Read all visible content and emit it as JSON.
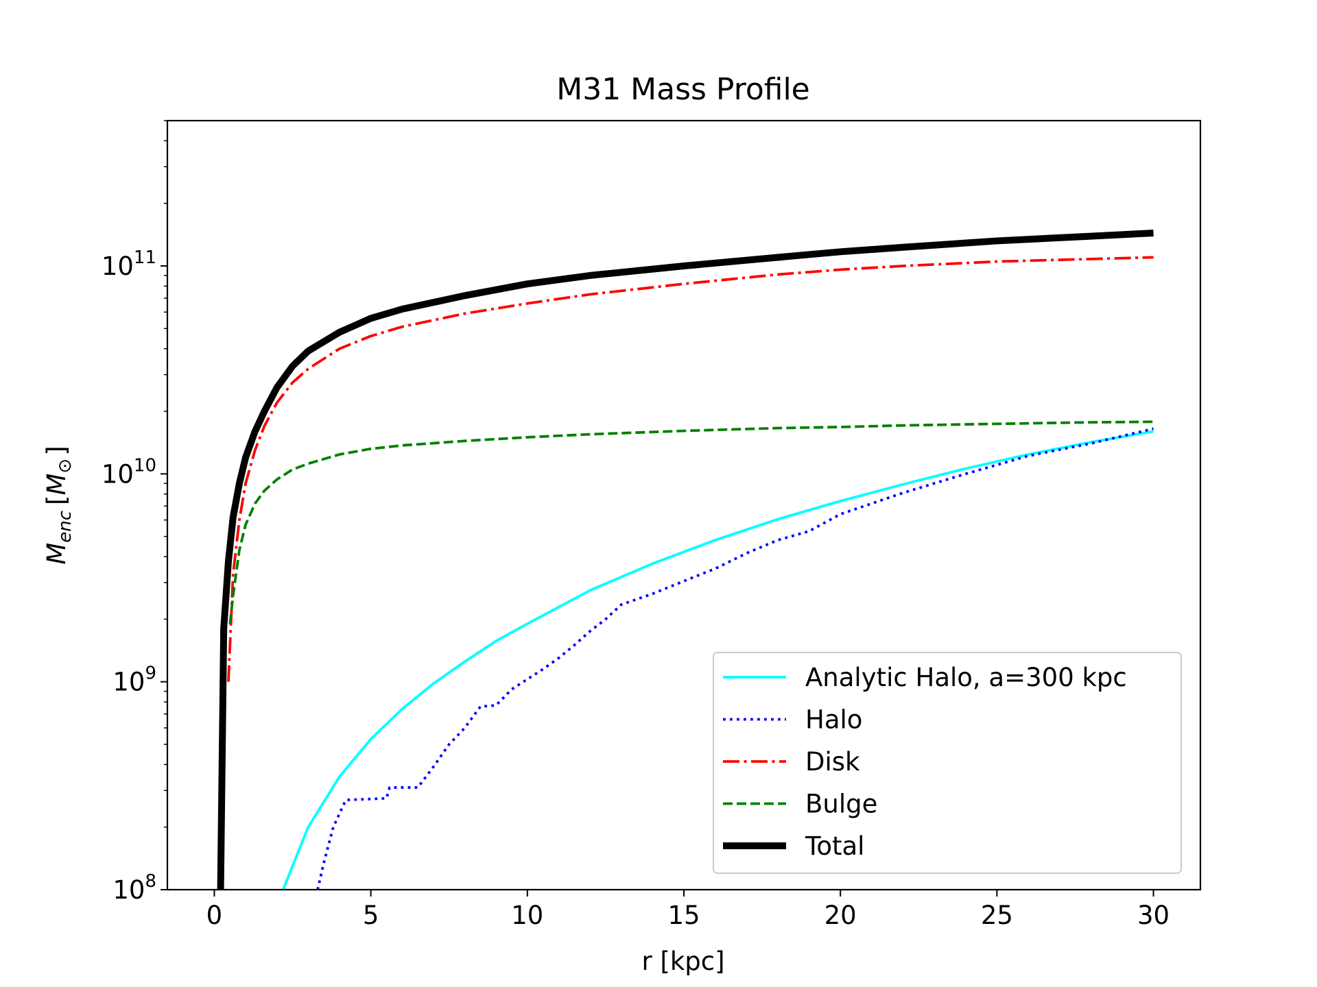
{
  "chart_data": {
    "type": "line",
    "title": "M31 Mass Profile",
    "xlabel": "r [kpc]",
    "ylabel": {
      "base": "M",
      "sub": "enc",
      "unit_open": "[",
      "unit_base": "M",
      "unit_sub": "⊙",
      "unit_close": "]"
    },
    "xlim": [
      -1.5,
      31.5
    ],
    "ylim": [
      100000000.0,
      500000000000.0
    ],
    "yscale": "log",
    "xticks": [
      0,
      5,
      10,
      15,
      20,
      25,
      30
    ],
    "xtick_labels": [
      "0",
      "5",
      "10",
      "15",
      "20",
      "25",
      "30"
    ],
    "yticks": [
      {
        "value": 100000000.0,
        "base": "10",
        "exp": "8"
      },
      {
        "value": 1000000000.0,
        "base": "10",
        "exp": "9"
      },
      {
        "value": 10000000000.0,
        "base": "10",
        "exp": "10"
      },
      {
        "value": 100000000000.0,
        "base": "10",
        "exp": "11"
      }
    ],
    "grid": false,
    "legend_position": "lower-right",
    "series": [
      {
        "name": "Analytic Halo, a=300 kpc",
        "color": "#00ffff",
        "style": "solid",
        "points": [
          [
            2.2,
            100000000.0
          ],
          [
            2.5,
            130000000.0
          ],
          [
            3,
            200000000.0
          ],
          [
            4,
            350000000.0
          ],
          [
            5,
            530000000.0
          ],
          [
            6,
            740000000.0
          ],
          [
            7,
            980000000.0
          ],
          [
            8,
            1250000000.0
          ],
          [
            9,
            1570000000.0
          ],
          [
            10,
            1900000000.0
          ],
          [
            12,
            2750000000.0
          ],
          [
            14,
            3700000000.0
          ],
          [
            16,
            4800000000.0
          ],
          [
            18,
            6050000000.0
          ],
          [
            20,
            7400000000.0
          ],
          [
            22,
            8900000000.0
          ],
          [
            24,
            10600000000.0
          ],
          [
            26,
            12400000000.0
          ],
          [
            28,
            14200000000.0
          ],
          [
            30,
            16000000000.0
          ]
        ]
      },
      {
        "name": "Halo",
        "color": "#0000ff",
        "style": "dotted",
        "points": [
          [
            3.3,
            100000000.0
          ],
          [
            3.5,
            135000000.0
          ],
          [
            3.8,
            200000000.0
          ],
          [
            4.2,
            270000000.0
          ],
          [
            5.5,
            275000000.0
          ],
          [
            5.6,
            310000000.0
          ],
          [
            6.5,
            310000000.0
          ],
          [
            7,
            390000000.0
          ],
          [
            7.5,
            500000000.0
          ],
          [
            8,
            600000000.0
          ],
          [
            8.5,
            760000000.0
          ],
          [
            9,
            770000000.0
          ],
          [
            9.5,
            920000000.0
          ],
          [
            10.5,
            1150000000.0
          ],
          [
            11,
            1300000000.0
          ],
          [
            11.5,
            1500000000.0
          ],
          [
            12,
            1750000000.0
          ],
          [
            12.5,
            2000000000.0
          ],
          [
            13,
            2350000000.0
          ],
          [
            14,
            2650000000.0
          ],
          [
            15,
            3050000000.0
          ],
          [
            16,
            3500000000.0
          ],
          [
            17,
            4150000000.0
          ],
          [
            18,
            4800000000.0
          ],
          [
            19,
            5300000000.0
          ],
          [
            20,
            6400000000.0
          ],
          [
            22,
            8100000000.0
          ],
          [
            24,
            10000000000.0
          ],
          [
            26,
            12200000000.0
          ],
          [
            28,
            14000000000.0
          ],
          [
            30,
            16500000000.0
          ]
        ]
      },
      {
        "name": "Disk",
        "color": "#ff0000",
        "style": "dashdot",
        "points": [
          [
            0.45,
            1000000000.0
          ],
          [
            0.6,
            3300000000.0
          ],
          [
            0.8,
            6000000000.0
          ],
          [
            1,
            9000000000.0
          ],
          [
            1.3,
            13000000000.0
          ],
          [
            1.6,
            17000000000.0
          ],
          [
            2,
            22000000000.0
          ],
          [
            2.5,
            27500000000.0
          ],
          [
            3,
            32000000000.0
          ],
          [
            4,
            40000000000.0
          ],
          [
            5,
            46000000000.0
          ],
          [
            6,
            51000000000.0
          ],
          [
            8,
            59000000000.0
          ],
          [
            10,
            66000000000.0
          ],
          [
            12,
            73000000000.0
          ],
          [
            15,
            82000000000.0
          ],
          [
            18,
            91000000000.0
          ],
          [
            20,
            96000000000.0
          ],
          [
            22,
            100000000000.0
          ],
          [
            25,
            105000000000.0
          ],
          [
            28,
            108000000000.0
          ],
          [
            30,
            110000000000.0
          ]
        ]
      },
      {
        "name": "Bulge",
        "color": "#008000",
        "style": "dashed",
        "points": [
          [
            0.5,
            1900000000.0
          ],
          [
            0.6,
            2600000000.0
          ],
          [
            0.8,
            4300000000.0
          ],
          [
            1,
            5700000000.0
          ],
          [
            1.3,
            7200000000.0
          ],
          [
            1.6,
            8300000000.0
          ],
          [
            2,
            9400000000.0
          ],
          [
            2.5,
            10500000000.0
          ],
          [
            3,
            11200000000.0
          ],
          [
            4,
            12400000000.0
          ],
          [
            5,
            13200000000.0
          ],
          [
            6,
            13700000000.0
          ],
          [
            8,
            14400000000.0
          ],
          [
            10,
            15000000000.0
          ],
          [
            12,
            15500000000.0
          ],
          [
            15,
            16100000000.0
          ],
          [
            18,
            16600000000.0
          ],
          [
            20,
            16800000000.0
          ],
          [
            22,
            17100000000.0
          ],
          [
            25,
            17400000000.0
          ],
          [
            28,
            17700000000.0
          ],
          [
            30,
            17800000000.0
          ]
        ]
      },
      {
        "name": "Total",
        "color": "#000000",
        "style": "solid-thick",
        "points": [
          [
            0.2,
            100000000.0
          ],
          [
            0.3,
            1800000000.0
          ],
          [
            0.45,
            3800000000.0
          ],
          [
            0.6,
            6200000000.0
          ],
          [
            0.8,
            9000000000.0
          ],
          [
            1,
            12000000000.0
          ],
          [
            1.3,
            16000000000.0
          ],
          [
            1.6,
            20000000000.0
          ],
          [
            2,
            26000000000.0
          ],
          [
            2.5,
            33000000000.0
          ],
          [
            3,
            39000000000.0
          ],
          [
            4,
            48000000000.0
          ],
          [
            5,
            56000000000.0
          ],
          [
            6,
            62000000000.0
          ],
          [
            8,
            72000000000.0
          ],
          [
            10,
            82000000000.0
          ],
          [
            12,
            90000000000.0
          ],
          [
            15,
            100000000000.0
          ],
          [
            18,
            110000000000.0
          ],
          [
            20,
            117000000000.0
          ],
          [
            22,
            123000000000.0
          ],
          [
            25,
            132000000000.0
          ],
          [
            28,
            139000000000.0
          ],
          [
            30,
            144000000000.0
          ]
        ]
      }
    ]
  }
}
